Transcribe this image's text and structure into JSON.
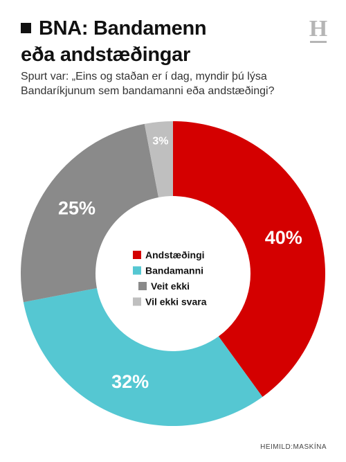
{
  "header": {
    "title_line1": "BNA: Bandamenn",
    "title_line2": "eða andstæðingar",
    "subtitle_line1": "Spurt var: „Eins og staðan er í dag, myndir þú lýsa",
    "subtitle_line2": "Bandaríkjunum sem bandamanni eða andstæðingi?",
    "logo_letter": "H"
  },
  "footer": {
    "source": "HEIMILD:MASKÍNA"
  },
  "chart_data": {
    "type": "pie",
    "donut": true,
    "categories": [
      "Andstæðingi",
      "Bandamanni",
      "Veit ekki",
      "Vil ekki svara"
    ],
    "values": [
      40,
      32,
      25,
      3
    ],
    "value_labels": [
      "40%",
      "32%",
      "25%",
      "3%"
    ],
    "colors": [
      "#d40000",
      "#55c7d2",
      "#8a8a8a",
      "#bfbfbf"
    ],
    "legend_position": "center",
    "start": "top",
    "direction": "clockwise"
  }
}
